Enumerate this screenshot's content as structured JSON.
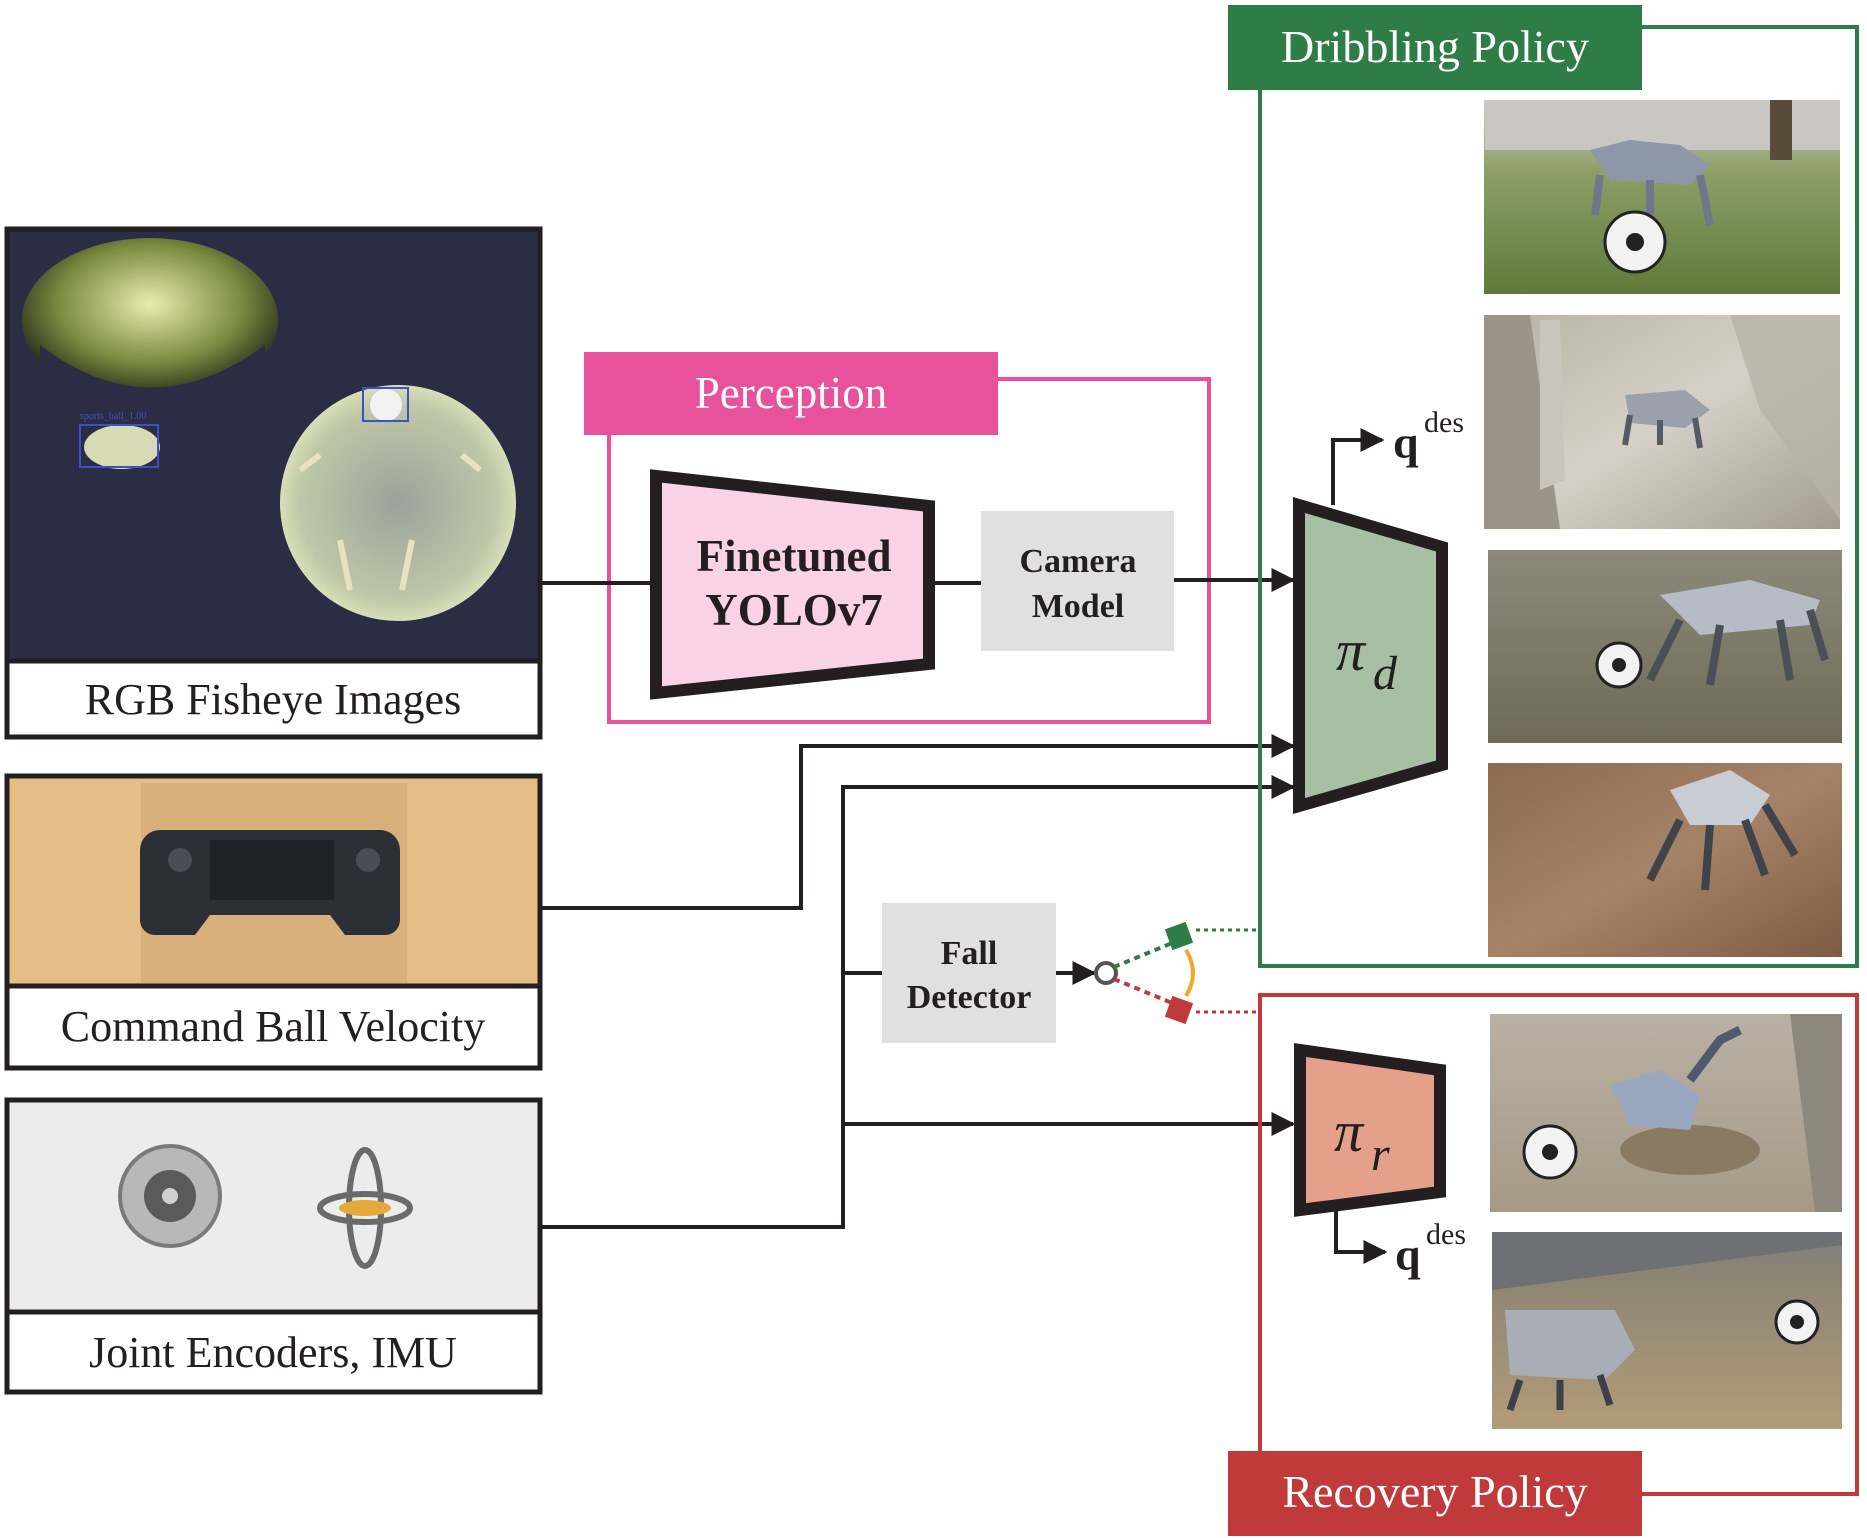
{
  "colors": {
    "perception": "#e8529c",
    "dribbling": "#2e7d46",
    "recovery": "#c0393b",
    "line": "#231f20",
    "yolo_fill": "#f9d3e5",
    "pi_d_fill": "#a7bfa2",
    "pi_r_fill": "#e5a08c",
    "gray_box": "#e0e0e0",
    "switch_orange": "#f5a623"
  },
  "inputs": {
    "fisheye": {
      "label": "RGB Fisheye Images",
      "detection_tag": "sports_ball_1.00"
    },
    "command": {
      "label": "Command Ball Velocity"
    },
    "encoders": {
      "label": "Joint Encoders, IMU"
    }
  },
  "perception": {
    "title": "Perception",
    "yolo_line1": "Finetuned",
    "yolo_line2": "YOLOv7",
    "camera_line1": "Camera",
    "camera_line2": "Model"
  },
  "fall_detector": {
    "line1": "Fall",
    "line2": "Detector"
  },
  "dribbling": {
    "title": "Dribbling Policy",
    "pi_symbol": "π",
    "pi_subscript": "d",
    "output_symbol": "q",
    "output_superscript": "des"
  },
  "recovery": {
    "title": "Recovery Policy",
    "pi_symbol": "π",
    "pi_subscript": "r",
    "output_symbol": "q",
    "output_superscript": "des"
  },
  "photos": {
    "dribbling": [
      "grass-robot-ball-photo",
      "ramp-robot-photo",
      "gravel-robot-ball-photo",
      "leaves-robot-photo"
    ],
    "recovery": [
      "fallen-robot-ball-photo",
      "fallen-robot-slope-photo"
    ]
  }
}
